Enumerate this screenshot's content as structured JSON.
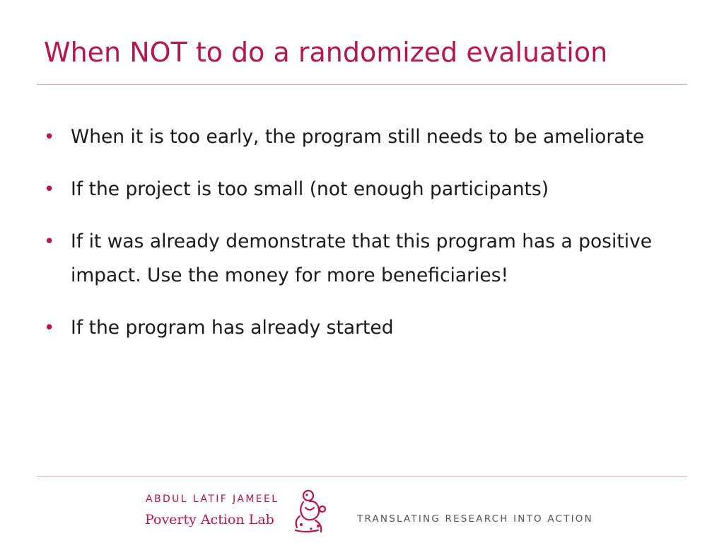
{
  "slide": {
    "title": "When NOT to do a randomized evaluation",
    "bullets": [
      "When it is too early, the program still needs to be ameliorate",
      "If the project is too small (not enough participants)",
      "If it was already demonstrate that this program has a positive impact. Use the money for more beneficiaries!",
      "If the program has already started"
    ]
  },
  "footer": {
    "logo_line1": "ABDUL LATIF JAMEEL",
    "logo_line2": "Poverty Action Lab",
    "tagline": "TRANSLATING RESEARCH INTO ACTION"
  },
  "colors": {
    "accent": "#b5174b",
    "rule": "#e8a9a0",
    "text": "#1a1a1a",
    "tagline": "#555555"
  },
  "icons": {
    "bullet": "bullet-dot-icon",
    "logo_mark": "jpal-logo-icon"
  }
}
